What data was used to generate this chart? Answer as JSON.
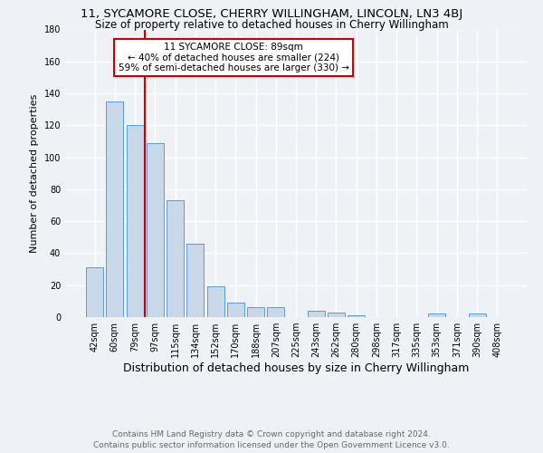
{
  "title_line1": "11, SYCAMORE CLOSE, CHERRY WILLINGHAM, LINCOLN, LN3 4BJ",
  "title_line2": "Size of property relative to detached houses in Cherry Willingham",
  "xlabel": "Distribution of detached houses by size in Cherry Willingham",
  "ylabel": "Number of detached properties",
  "bar_labels": [
    "42sqm",
    "60sqm",
    "79sqm",
    "97sqm",
    "115sqm",
    "134sqm",
    "152sqm",
    "170sqm",
    "188sqm",
    "207sqm",
    "225sqm",
    "243sqm",
    "262sqm",
    "280sqm",
    "298sqm",
    "317sqm",
    "335sqm",
    "353sqm",
    "371sqm",
    "390sqm",
    "408sqm"
  ],
  "bar_values": [
    31,
    135,
    120,
    109,
    73,
    46,
    19,
    9,
    6,
    6,
    0,
    4,
    3,
    1,
    0,
    0,
    0,
    2,
    0,
    2,
    0
  ],
  "bar_color": "#c8d8e8",
  "bar_edge_color": "#5b9bd5",
  "vline_x": 2.5,
  "vline_color": "#cc0000",
  "annotation_text": "11 SYCAMORE CLOSE: 89sqm\n← 40% of detached houses are smaller (224)\n59% of semi-detached houses are larger (330) →",
  "annotation_box_color": "#ffffff",
  "annotation_border_color": "#cc0000",
  "ylim": [
    0,
    180
  ],
  "yticks": [
    0,
    20,
    40,
    60,
    80,
    100,
    120,
    140,
    160,
    180
  ],
  "footer_line1": "Contains HM Land Registry data © Crown copyright and database right 2024.",
  "footer_line2": "Contains public sector information licensed under the Open Government Licence v3.0.",
  "background_color": "#eef2f7",
  "grid_color": "#ffffff",
  "title1_fontsize": 9.5,
  "title2_fontsize": 8.5,
  "xlabel_fontsize": 9,
  "ylabel_fontsize": 8,
  "tick_fontsize": 7,
  "footer_fontsize": 6.5,
  "ann_fontsize": 7.5
}
